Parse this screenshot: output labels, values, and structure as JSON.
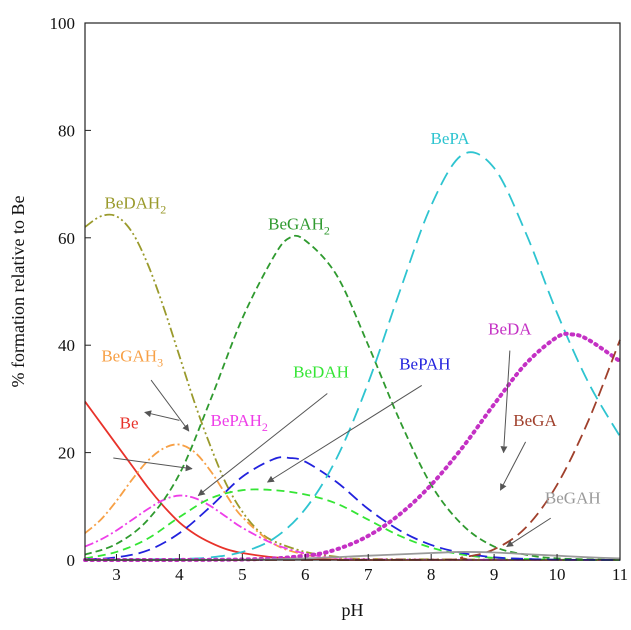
{
  "chart_data": {
    "type": "line",
    "xlabel": "pH",
    "ylabel": "% formation relative to Be",
    "xlim": [
      2.5,
      11
    ],
    "ylim": [
      0,
      100
    ],
    "xticks": [
      "3",
      "4",
      "5",
      "6",
      "7",
      "8",
      "9",
      "10",
      "11"
    ],
    "yticks": [
      "0",
      "20",
      "40",
      "60",
      "80",
      "100"
    ],
    "grid": false,
    "legend": "inline labels with arrows",
    "series": [
      {
        "key": "be",
        "label": "Be",
        "sub": "",
        "color": "#e8322a",
        "dash": "",
        "x": [
          2.5,
          2.75,
          3.0,
          3.25,
          3.5,
          3.75,
          4.0,
          4.25,
          4.5,
          4.75,
          5.0,
          5.5,
          6.0,
          6.5,
          7.0,
          11.0
        ],
        "y": [
          29.5,
          25.5,
          21.5,
          17.5,
          13.5,
          10.0,
          7.0,
          4.8,
          3.2,
          2.0,
          1.3,
          0.5,
          0.2,
          0.05,
          0,
          0
        ]
      },
      {
        "key": "bedah2",
        "label": "BeDAH",
        "sub": "2",
        "color": "#9a9a2c",
        "dash": "10 3 2 3 2 3",
        "x": [
          2.5,
          2.75,
          3.0,
          3.25,
          3.5,
          3.75,
          4.0,
          4.25,
          4.5,
          4.75,
          5.0,
          5.25,
          5.5,
          6.0,
          6.5,
          7.0,
          11.0
        ],
        "y": [
          62,
          64,
          64,
          61,
          55,
          47,
          38,
          29,
          21,
          14,
          9,
          5.5,
          3.5,
          1.5,
          0.6,
          0.2,
          0
        ]
      },
      {
        "key": "begah3",
        "label": "BeGAH",
        "sub": "3",
        "color": "#f7a046",
        "dash": "9 3 2 3",
        "x": [
          2.5,
          2.75,
          3.0,
          3.25,
          3.5,
          3.75,
          4.0,
          4.25,
          4.5,
          4.75,
          5.0,
          5.5,
          6.0,
          6.5,
          7.0,
          11.0
        ],
        "y": [
          5,
          7.5,
          11,
          15,
          18.5,
          20.8,
          21.5,
          20,
          16.5,
          12,
          8,
          3,
          1,
          0.3,
          0.05,
          0
        ]
      },
      {
        "key": "bepah2",
        "label": "BePAH",
        "sub": "2",
        "color": "#ee3ee8",
        "dash": "9 3 2 3",
        "x": [
          2.5,
          2.75,
          3.0,
          3.25,
          3.5,
          3.75,
          4.0,
          4.25,
          4.5,
          4.75,
          5.0,
          5.5,
          6.0,
          6.5,
          7.0,
          11.0
        ],
        "y": [
          2.5,
          3.8,
          5.5,
          7.5,
          9.5,
          11.2,
          12,
          11.5,
          10,
          8,
          6,
          3,
          1.2,
          0.4,
          0.1,
          0
        ]
      },
      {
        "key": "begah2",
        "label": "BeGAH",
        "sub": "2",
        "color": "#2f9a2f",
        "dash": "7 4",
        "x": [
          2.5,
          3.0,
          3.5,
          4.0,
          4.5,
          5.0,
          5.5,
          5.75,
          6.0,
          6.5,
          7.0,
          7.5,
          8.0,
          8.5,
          9.0,
          9.5,
          10.0,
          11.0
        ],
        "y": [
          1,
          3,
          7.5,
          16,
          30,
          45,
          56.5,
          60,
          59.5,
          53,
          40,
          26,
          14,
          6.5,
          2.5,
          1,
          0.3,
          0
        ]
      },
      {
        "key": "bedah",
        "label": "BeDAH",
        "sub": "",
        "color": "#35e535",
        "dash": "8 5",
        "x": [
          2.5,
          3.0,
          3.5,
          4.0,
          4.5,
          5.0,
          5.5,
          6.0,
          6.5,
          7.0,
          7.5,
          8.0,
          8.5,
          9.0,
          10.0,
          11.0
        ],
        "y": [
          0.3,
          1.5,
          4,
          8,
          11.5,
          13,
          13,
          12.2,
          10.5,
          7.5,
          4.5,
          2.3,
          1,
          0.4,
          0.05,
          0
        ]
      },
      {
        "key": "bepah",
        "label": "BePAH",
        "sub": "",
        "color": "#2222dd",
        "dash": "12 6",
        "x": [
          2.5,
          3.0,
          3.5,
          4.0,
          4.5,
          5.0,
          5.5,
          5.75,
          6.0,
          6.5,
          7.0,
          7.5,
          8.0,
          8.5,
          9.0,
          9.5,
          10.0,
          11.0
        ],
        "y": [
          0.1,
          0.5,
          1.8,
          5,
          10,
          15.5,
          18.8,
          19,
          18.3,
          14.5,
          9.5,
          5.5,
          2.8,
          1.3,
          0.5,
          0.2,
          0.05,
          0
        ]
      },
      {
        "key": "bepa",
        "label": "BePA",
        "sub": "",
        "color": "#2ec4d0",
        "dash": "14 7",
        "x": [
          2.5,
          4.0,
          4.5,
          5.0,
          5.5,
          6.0,
          6.5,
          7.0,
          7.5,
          8.0,
          8.5,
          9.0,
          9.5,
          10.0,
          10.5,
          11.0
        ],
        "y": [
          0,
          0.2,
          0.5,
          1.5,
          4,
          9.5,
          19,
          33,
          50,
          66,
          75.5,
          73,
          61,
          46,
          33,
          23
        ]
      },
      {
        "key": "beda",
        "label": "BeDA",
        "sub": "",
        "color": "#c430c4",
        "dash": "1.5 5",
        "x": [
          2.5,
          5.0,
          6.0,
          6.5,
          7.0,
          7.5,
          8.0,
          8.5,
          9.0,
          9.5,
          10.0,
          10.25,
          10.5,
          11.0
        ],
        "y": [
          0,
          0.1,
          0.8,
          2,
          4.5,
          8.5,
          14,
          21,
          29,
          36.5,
          41.5,
          42,
          41,
          37
        ]
      },
      {
        "key": "bega",
        "label": "BeGA",
        "sub": "",
        "color": "#a0402c",
        "dash": "12 6",
        "x": [
          2.5,
          8.0,
          8.5,
          9.0,
          9.5,
          10.0,
          10.5,
          11.0
        ],
        "y": [
          0,
          0.05,
          0.5,
          2,
          6,
          14,
          26,
          41
        ]
      },
      {
        "key": "begah",
        "label": "BeGAH",
        "sub": "",
        "color": "#9a9a9a",
        "dash": "",
        "x": [
          2.5,
          5.0,
          6.0,
          7.0,
          8.0,
          8.5,
          9.0,
          9.5,
          10.0,
          10.5,
          11.0
        ],
        "y": [
          0,
          0.05,
          0.3,
          0.8,
          1.3,
          1.5,
          1.4,
          1.1,
          0.8,
          0.5,
          0.3
        ]
      }
    ],
    "annotations": [
      {
        "key": "be",
        "lx": 3.2,
        "ly": 24.5,
        "ax": 2.95,
        "ay": 19.0,
        "tx": 4.2,
        "ty": 17.0
      },
      {
        "key": "bedah2",
        "lx": 3.3,
        "ly": 65.5,
        "ax": null,
        "ay": null,
        "tx": null,
        "ty": null
      },
      {
        "key": "begah3",
        "lx": 3.25,
        "ly": 37.0,
        "ax": 3.55,
        "ay": 33.5,
        "tx": 4.15,
        "ty": 24.0
      },
      {
        "key": "bepah2",
        "lx": 4.95,
        "ly": 25.0,
        "ax": 4.0,
        "ay": 26.0,
        "tx": 3.45,
        "ty": 27.5
      },
      {
        "key": "begah2",
        "lx": 5.9,
        "ly": 61.5,
        "ax": null,
        "ay": null,
        "tx": null,
        "ty": null
      },
      {
        "key": "bedah",
        "lx": 6.25,
        "ly": 34.0,
        "ax": 6.35,
        "ay": 31.0,
        "tx": 4.3,
        "ty": 12.0
      },
      {
        "key": "bepah",
        "lx": 7.9,
        "ly": 35.5,
        "ax": 7.85,
        "ay": 32.5,
        "tx": 5.4,
        "ty": 14.5
      },
      {
        "key": "bepa",
        "lx": 8.3,
        "ly": 77.5,
        "ax": null,
        "ay": null,
        "tx": null,
        "ty": null
      },
      {
        "key": "beda",
        "lx": 9.25,
        "ly": 42.0,
        "ax": 9.25,
        "ay": 39.0,
        "tx": 9.15,
        "ty": 20.0
      },
      {
        "key": "bega",
        "lx": 9.65,
        "ly": 25.0,
        "ax": 9.5,
        "ay": 22.0,
        "tx": 9.1,
        "ty": 13.0
      },
      {
        "key": "begah",
        "lx": 10.25,
        "ly": 10.5,
        "ax": 9.9,
        "ay": 7.8,
        "tx": 9.2,
        "ty": 2.5
      }
    ]
  }
}
